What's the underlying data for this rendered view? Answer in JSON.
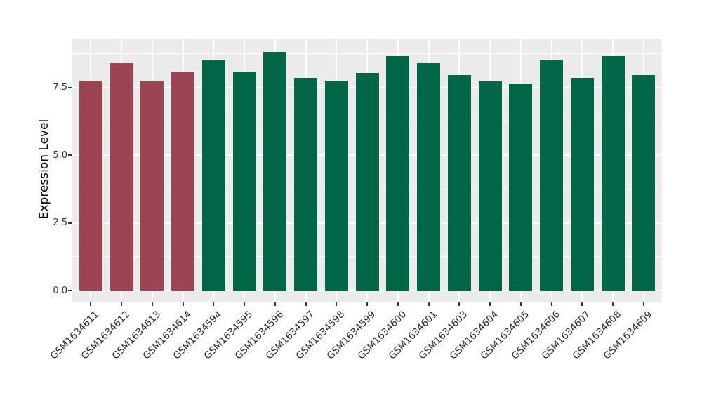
{
  "chart_data": {
    "type": "bar",
    "title": "",
    "xlabel": "",
    "ylabel": "Expression Level",
    "categories": [
      "GSM1634611",
      "GSM1634612",
      "GSM1634613",
      "GSM1634614",
      "GSM1634594",
      "GSM1634595",
      "GSM1634596",
      "GSM1634597",
      "GSM1634598",
      "GSM1634599",
      "GSM1634600",
      "GSM1634601",
      "GSM1634603",
      "GSM1634604",
      "GSM1634605",
      "GSM1634606",
      "GSM1634607",
      "GSM1634608",
      "GSM1634609"
    ],
    "values": [
      7.75,
      8.4,
      7.72,
      8.09,
      8.51,
      8.07,
      8.81,
      7.86,
      7.75,
      8.02,
      8.64,
      8.39,
      7.95,
      7.71,
      7.64,
      8.5,
      7.85,
      8.65,
      7.95
    ],
    "bar_colors": [
      "#9D4452",
      "#9D4452",
      "#9D4452",
      "#9D4452",
      "#006647",
      "#006647",
      "#006647",
      "#006647",
      "#006647",
      "#006647",
      "#006647",
      "#006647",
      "#006647",
      "#006647",
      "#006647",
      "#006647",
      "#006647",
      "#006647",
      "#006647"
    ],
    "group_colors": {
      "first_group": "#9D4452",
      "second_group": "#006647"
    },
    "yticks": [
      0,
      2.5,
      5,
      7.5
    ],
    "ytick_labels": [
      "0.0",
      "2.5",
      "5.0",
      "7.5"
    ],
    "y_minor_breaks": [
      1.25,
      3.75,
      6.25,
      8.75
    ],
    "ylim": [
      0,
      9.27
    ],
    "grid": "on",
    "legend": "none",
    "panel_bg": "#EBEBEB",
    "grid_color": "#FFFFFF",
    "tick_color": "#333333"
  }
}
